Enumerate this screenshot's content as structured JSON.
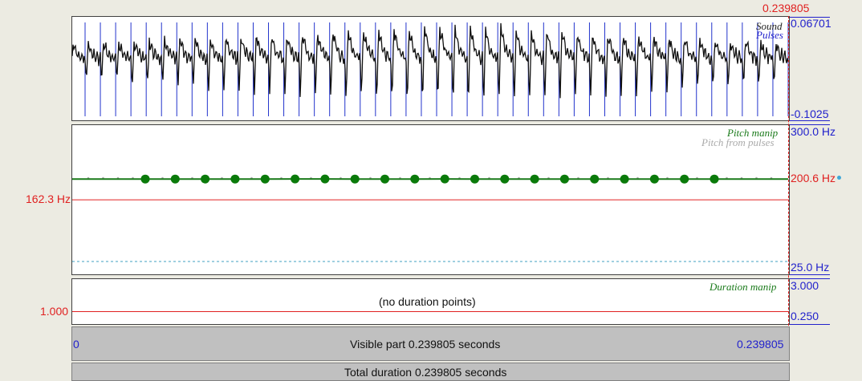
{
  "cursor_time": "0.239805",
  "sound": {
    "title": "Sound",
    "pulses_title": "Pulses",
    "max_label": "0.06701",
    "min_label": "-0.1025",
    "pulse_count": 47
  },
  "pitch": {
    "title": "Pitch manip",
    "subtitle": "Pitch from pulses",
    "max_label": "300.0 Hz",
    "cursor_label": "200.6 Hz",
    "min_label": "25.0 Hz",
    "reference_label": "162.3 Hz",
    "points_hz": [
      200.6,
      200.6,
      200.6,
      200.7,
      200.7,
      200.8,
      200.8,
      200.7,
      200.6,
      200.7,
      200.8,
      200.7,
      200.7,
      200.7,
      200.7,
      200.6,
      200.5,
      200.6,
      200.6,
      200.7
    ],
    "colors": {
      "curve": "#1a7a1a",
      "points": "#0a7a0a",
      "reference": "#e02020",
      "floor": "#40a0c0"
    }
  },
  "duration": {
    "title": "Duration manip",
    "max_label": "3.000",
    "min_label": "0.250",
    "reference_label": "1.000",
    "empty_text": "(no duration points)"
  },
  "visible_bar": {
    "start": "0",
    "end": "0.239805",
    "text": "Visible part 0.239805 seconds"
  },
  "total_bar": {
    "text": "Total duration 0.239805 seconds"
  }
}
